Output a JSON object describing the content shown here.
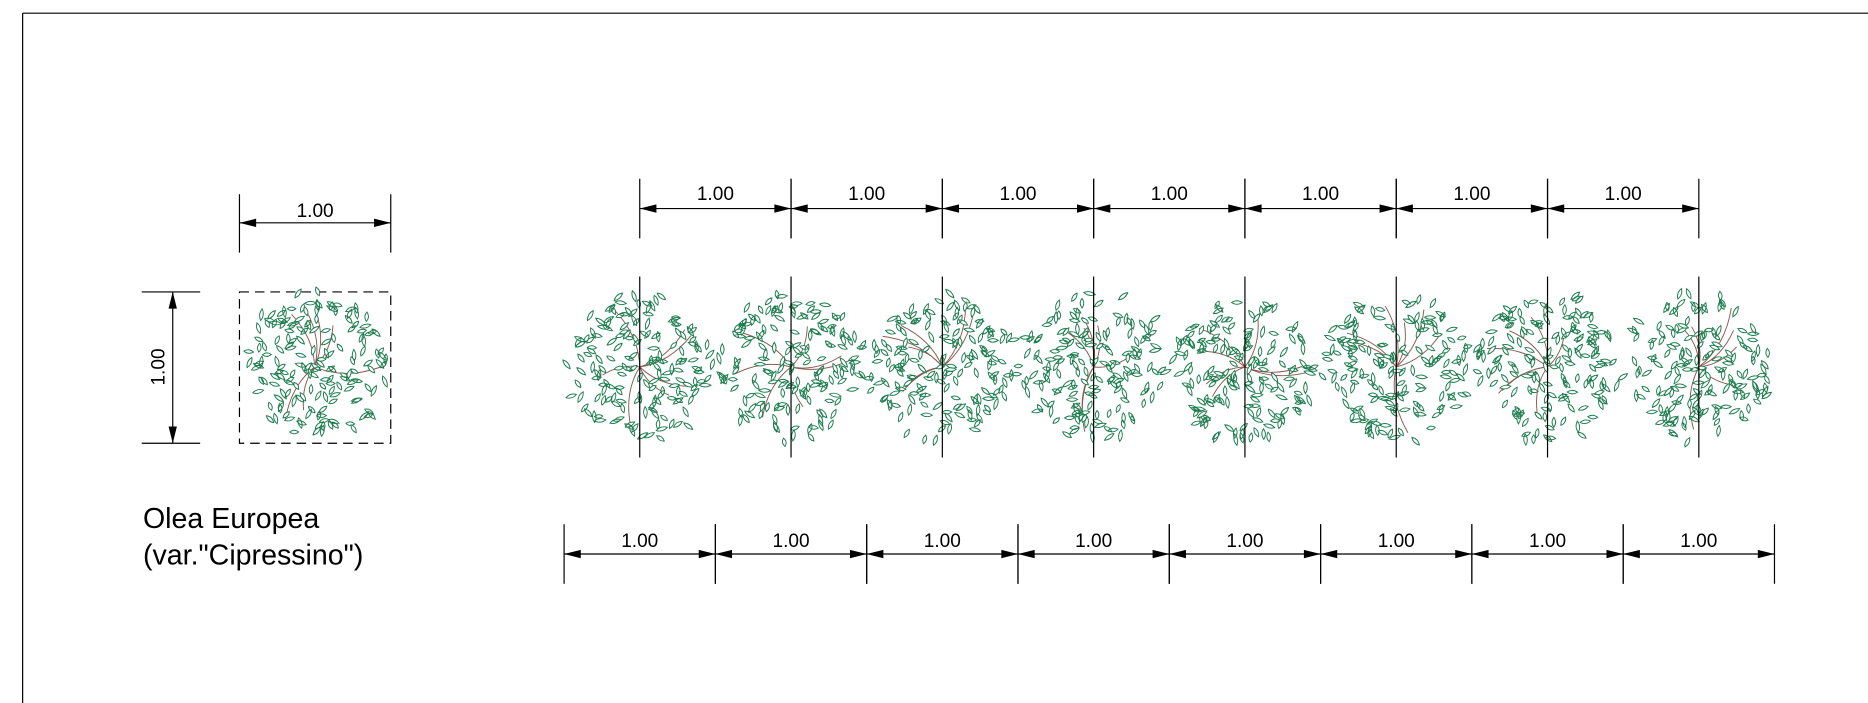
{
  "legend_plant": {
    "width_dimension": "1.00",
    "height_dimension": "1.00",
    "name": [
      "Olea Europea",
      "(var.\"Cipressino\")"
    ]
  },
  "row": {
    "top_dimensions": [
      "1.00",
      "1.00",
      "1.00",
      "1.00",
      "1.00",
      "1.00",
      "1.00"
    ],
    "bottom_dimensions": [
      "1.00",
      "1.00",
      "1.00",
      "1.00",
      "1.00",
      "1.00",
      "1.00",
      "1.00"
    ]
  }
}
